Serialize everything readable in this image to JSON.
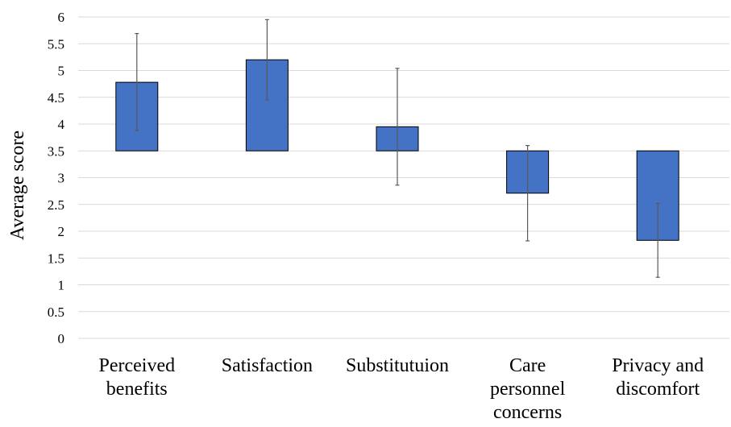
{
  "chart_data": {
    "type": "bar",
    "ylabel": "Average score",
    "xlabel": "",
    "title": "",
    "ylim": [
      0,
      6
    ],
    "yticks": [
      0,
      0.5,
      1,
      1.5,
      2,
      2.5,
      3,
      3.5,
      4,
      4.5,
      5,
      5.5,
      6
    ],
    "baseline": 3.5,
    "grid": true,
    "categories": [
      [
        "Perceived",
        "benefits"
      ],
      [
        "Satisfaction"
      ],
      [
        "Substitutuion"
      ],
      [
        "Care",
        "personnel",
        "concerns"
      ],
      [
        "Privacy and",
        "discomfort"
      ]
    ],
    "values": [
      4.78,
      5.2,
      3.95,
      2.71,
      1.83
    ],
    "error_low": [
      3.88,
      4.45,
      2.86,
      1.82,
      1.14
    ],
    "error_high": [
      5.69,
      5.95,
      5.04,
      3.6,
      2.52
    ]
  },
  "colors": {
    "bar": "#4472C4",
    "bar_stroke": "#000000",
    "grid": "#d9d9d9",
    "error_bar": "#595959"
  }
}
